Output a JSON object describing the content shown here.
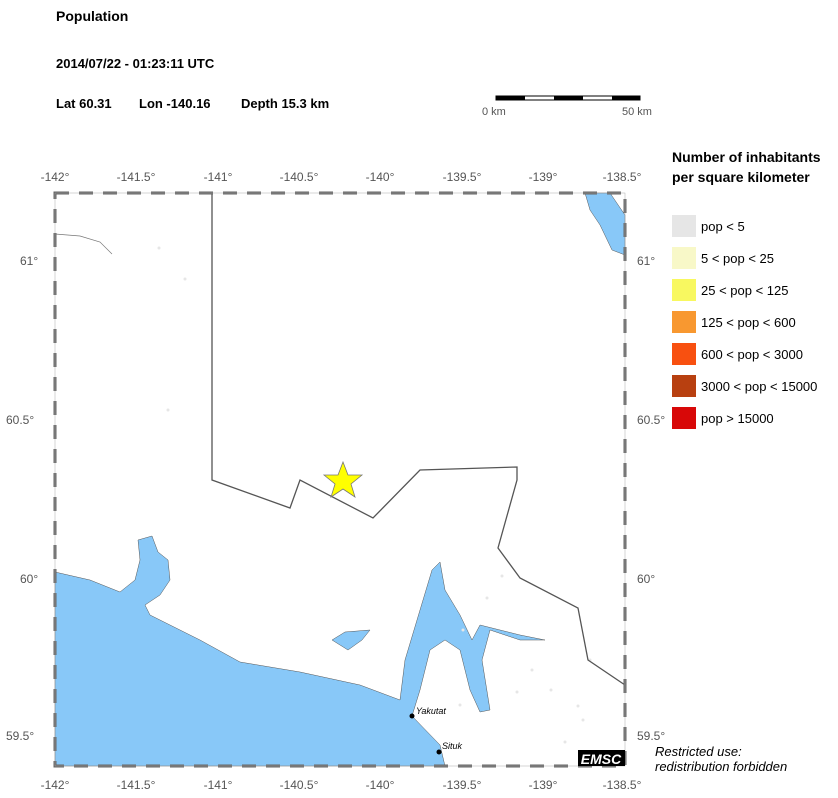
{
  "header": {
    "title": "Population",
    "datetime": "2014/07/22 - 01:23:11 UTC",
    "lat": "Lat 60.31",
    "lon": "Lon -140.16",
    "depth": "Depth  15.3 km"
  },
  "scale": {
    "start": "0 km",
    "end": "50 km"
  },
  "axes": {
    "lon_ticks": [
      "-142°",
      "-141.5°",
      "-141°",
      "-140.5°",
      "-140°",
      "-139.5°",
      "-139°",
      "-138.5°"
    ],
    "lat_ticks": [
      "61°",
      "60.5°",
      "60°",
      "59.5°"
    ]
  },
  "places": [
    "Yakutat",
    "Situk"
  ],
  "logo": "EMSC",
  "legend": {
    "title_line1": "Number of inhabitants",
    "title_line2": "per square kilometer",
    "items": [
      {
        "label": "pop < 5",
        "color": "#e6e6e6"
      },
      {
        "label": "5 < pop < 25",
        "color": "#f8f8c8"
      },
      {
        "label": "25 < pop < 125",
        "color": "#f8f860"
      },
      {
        "label": "125 < pop < 600",
        "color": "#f89830"
      },
      {
        "label": "600 < pop < 3000",
        "color": "#f85010"
      },
      {
        "label": "3000 < pop < 15000",
        "color": "#b84010"
      },
      {
        "label": "pop > 15000",
        "color": "#d80808"
      }
    ]
  },
  "notice": {
    "line1": "Restricted use:",
    "line2": "redistribution forbidden"
  },
  "colors": {
    "water": "#88c8f8",
    "epicenter": "#ffff00"
  }
}
